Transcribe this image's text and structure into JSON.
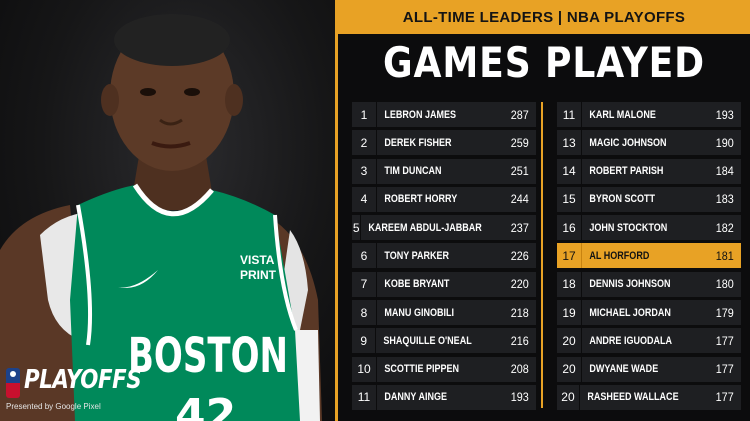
{
  "header": {
    "banner": "ALL-TIME LEADERS | NBA PLAYOFFS",
    "title": "GAMES PLAYED"
  },
  "jersey": {
    "team": "BOSTON",
    "sponsor_line1": "VISTA",
    "sponsor_line2": "PRINT",
    "number_partial": "42"
  },
  "logo": {
    "text": "PLAYOFFS",
    "sub": "Presented by Google Pixel"
  },
  "colors": {
    "accent": "#e8a225",
    "row_bg": "#1e1f22",
    "jersey_green": "#00895a"
  },
  "leaders_left": [
    {
      "rank": "1",
      "name": "LEBRON JAMES",
      "games": "287"
    },
    {
      "rank": "2",
      "name": "DEREK FISHER",
      "games": "259"
    },
    {
      "rank": "3",
      "name": "TIM DUNCAN",
      "games": "251"
    },
    {
      "rank": "4",
      "name": "ROBERT HORRY",
      "games": "244"
    },
    {
      "rank": "5",
      "name": "KAREEM ABDUL-JABBAR",
      "games": "237"
    },
    {
      "rank": "6",
      "name": "TONY PARKER",
      "games": "226"
    },
    {
      "rank": "7",
      "name": "KOBE BRYANT",
      "games": "220"
    },
    {
      "rank": "8",
      "name": "MANU GINOBILI",
      "games": "218"
    },
    {
      "rank": "9",
      "name": "SHAQUILLE O'NEAL",
      "games": "216"
    },
    {
      "rank": "10",
      "name": "SCOTTIE PIPPEN",
      "games": "208"
    },
    {
      "rank": "11",
      "name": "DANNY AINGE",
      "games": "193"
    }
  ],
  "leaders_right": [
    {
      "rank": "11",
      "name": "KARL MALONE",
      "games": "193"
    },
    {
      "rank": "13",
      "name": "MAGIC JOHNSON",
      "games": "190"
    },
    {
      "rank": "14",
      "name": "ROBERT PARISH",
      "games": "184"
    },
    {
      "rank": "15",
      "name": "BYRON SCOTT",
      "games": "183"
    },
    {
      "rank": "16",
      "name": "JOHN STOCKTON",
      "games": "182"
    },
    {
      "rank": "17",
      "name": "AL HORFORD",
      "games": "181",
      "highlight": true
    },
    {
      "rank": "18",
      "name": "DENNIS JOHNSON",
      "games": "180"
    },
    {
      "rank": "19",
      "name": "MICHAEL JORDAN",
      "games": "179"
    },
    {
      "rank": "20",
      "name": "ANDRE IGUODALA",
      "games": "177"
    },
    {
      "rank": "20",
      "name": "DWYANE WADE",
      "games": "177"
    },
    {
      "rank": "20",
      "name": "RASHEED WALLACE",
      "games": "177"
    }
  ]
}
